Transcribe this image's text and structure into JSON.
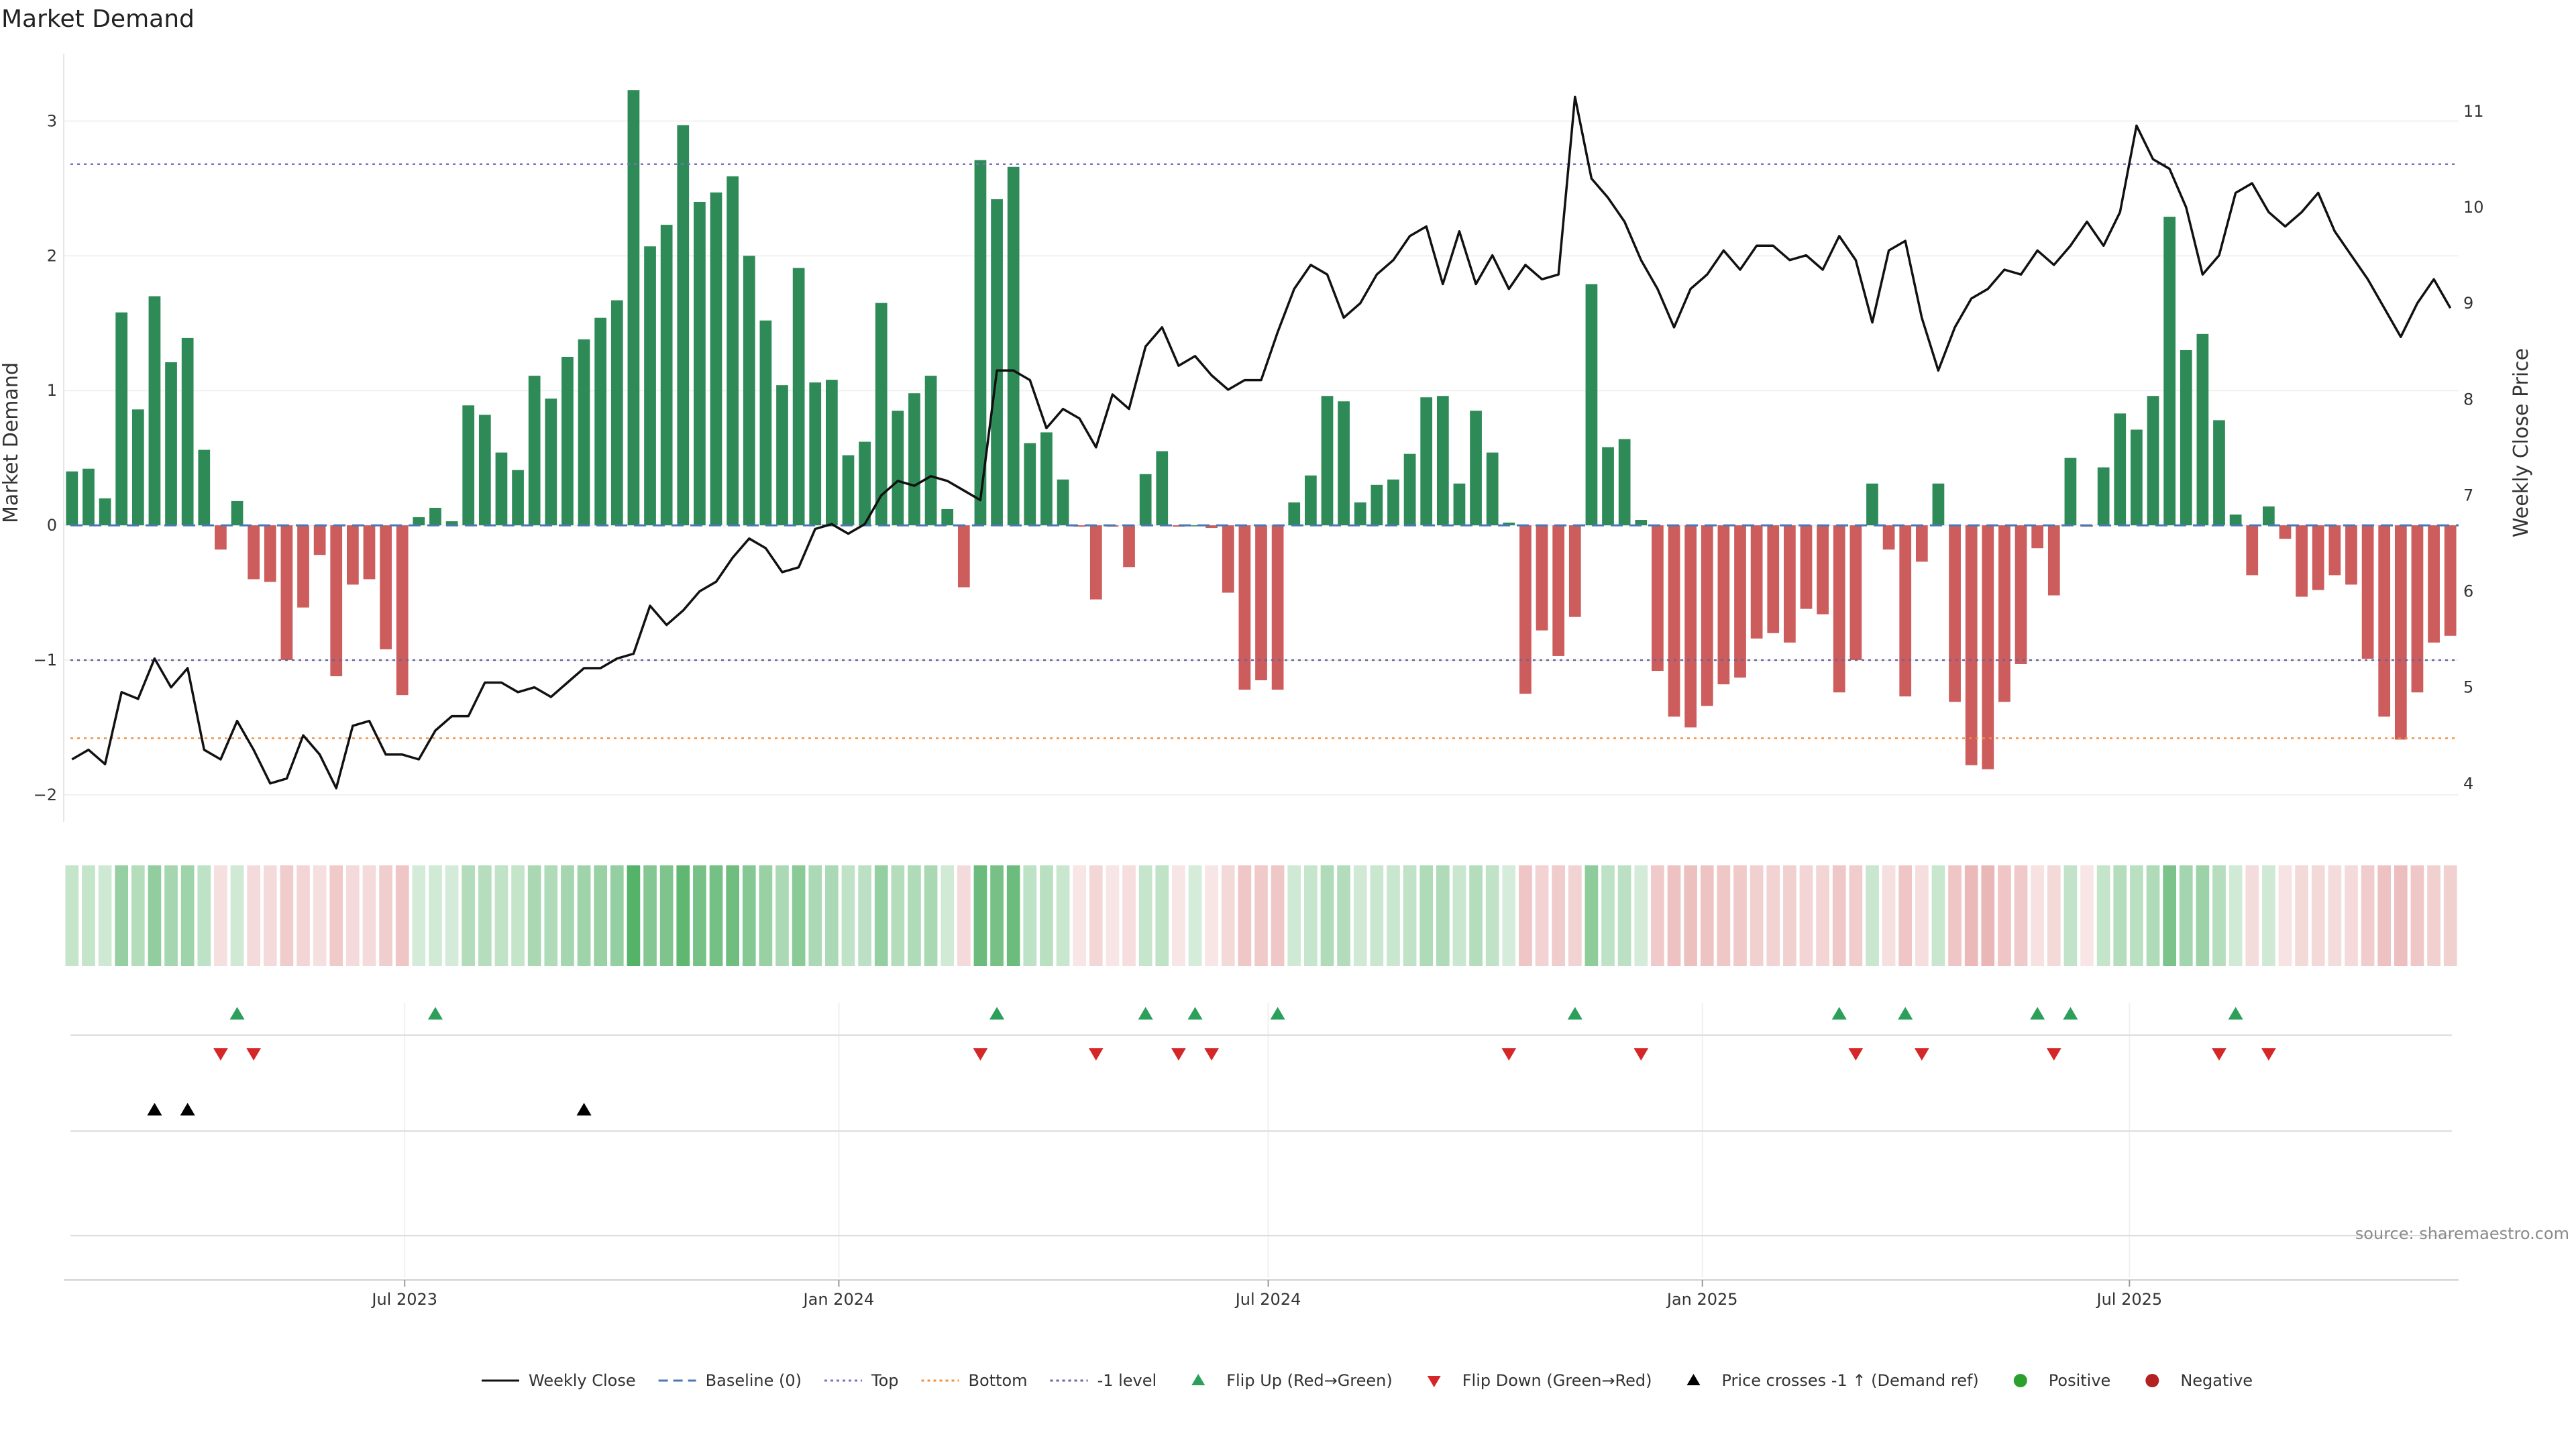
{
  "chart_data": {
    "type": "bar",
    "title": "Market Demand",
    "ylabel": "Market Demand",
    "y2label": "Weekly Close Price",
    "ylim": [
      -2.2,
      3.5
    ],
    "y2lim": [
      3.6,
      11.6
    ],
    "yticks": [
      -2,
      -1,
      0,
      1,
      2,
      3
    ],
    "y2ticks": [
      4,
      5,
      6,
      7,
      8,
      9,
      10,
      11
    ],
    "top_level": 2.68,
    "bottom_level": -1.58,
    "minus1_level": -1,
    "xticks": [
      {
        "label": "Jul 2023",
        "x": "2023-07-01"
      },
      {
        "label": "Jan 2024",
        "x": "2024-01-01"
      },
      {
        "label": "Jul 2024",
        "x": "2024-07-01"
      },
      {
        "label": "Jan 2025",
        "x": "2025-01-01"
      },
      {
        "label": "Jul 2025",
        "x": "2025-07-01"
      }
    ],
    "start_week": "2023-02-10",
    "series": [
      {
        "name": "Market Demand",
        "values": [
          0.4,
          0.42,
          0.2,
          1.58,
          0.86,
          1.7,
          1.21,
          1.39,
          0.56,
          -0.18,
          0.18,
          -0.4,
          -0.42,
          -1.0,
          -0.61,
          -0.22,
          -1.12,
          -0.44,
          -0.4,
          -0.92,
          -1.26,
          0.06,
          0.13,
          0.03,
          0.89,
          0.82,
          0.54,
          0.41,
          1.11,
          0.94,
          1.25,
          1.38,
          1.54,
          1.67,
          3.23,
          2.07,
          2.23,
          2.97,
          2.4,
          2.47,
          2.59,
          2.0,
          1.52,
          1.04,
          1.91,
          1.06,
          1.08,
          0.52,
          0.62,
          1.65,
          0.85,
          0.98,
          1.11,
          0.12,
          -0.46,
          2.71,
          2.42,
          2.66,
          0.61,
          0.69,
          0.34,
          -0.01,
          -0.55,
          -0.01,
          -0.31,
          0.38,
          0.55,
          -0.01,
          0.0,
          -0.02,
          -0.5,
          -1.22,
          -1.15,
          -1.22,
          0.17,
          0.37,
          0.96,
          0.92,
          0.17,
          0.3,
          0.34,
          0.53,
          0.95,
          0.96,
          0.31,
          0.85,
          0.54,
          0.02,
          -1.25,
          -0.78,
          -0.97,
          -0.68,
          1.79,
          0.58,
          0.64,
          0.04,
          -1.08,
          -1.42,
          -1.5,
          -1.34,
          -1.18,
          -1.13,
          -0.84,
          -0.8,
          -0.87,
          -0.62,
          -0.66,
          -1.24,
          -1.0,
          0.31,
          -0.18,
          -1.27,
          -0.27,
          0.31,
          -1.31,
          -1.78,
          -1.81,
          -1.31,
          -1.03,
          -0.17,
          -0.52,
          0.5,
          -0.01,
          0.43,
          0.83,
          0.71,
          0.96,
          2.29,
          1.3,
          1.42,
          0.78,
          0.08,
          -0.37,
          0.14,
          -0.1,
          -0.53,
          -0.48,
          -0.37,
          -0.44,
          -0.99,
          -1.42,
          -1.59,
          -1.24,
          -0.87,
          -0.82
        ]
      },
      {
        "name": "Weekly Close",
        "values": [
          4.25,
          4.35,
          4.2,
          4.95,
          4.88,
          5.3,
          5.0,
          5.2,
          4.35,
          4.25,
          4.65,
          4.35,
          4.0,
          4.05,
          4.5,
          4.3,
          3.95,
          4.6,
          4.65,
          4.3,
          4.3,
          4.25,
          4.55,
          4.7,
          4.7,
          5.05,
          5.05,
          4.95,
          5.0,
          4.9,
          5.05,
          5.2,
          5.2,
          5.3,
          5.35,
          5.85,
          5.65,
          5.8,
          6.0,
          6.1,
          6.35,
          6.55,
          6.45,
          6.2,
          6.25,
          6.65,
          6.7,
          6.6,
          6.7,
          7.0,
          7.15,
          7.1,
          7.2,
          7.15,
          7.05,
          6.95,
          8.3,
          8.3,
          8.2,
          7.7,
          7.9,
          7.8,
          7.5,
          8.05,
          7.9,
          8.55,
          8.75,
          8.35,
          8.45,
          8.25,
          8.1,
          8.2,
          8.2,
          8.7,
          9.15,
          9.4,
          9.3,
          8.85,
          9.0,
          9.3,
          9.45,
          9.7,
          9.8,
          9.2,
          9.75,
          9.2,
          9.5,
          9.15,
          9.4,
          9.25,
          9.3,
          11.15,
          10.3,
          10.1,
          9.85,
          9.45,
          9.15,
          8.75,
          9.15,
          9.3,
          9.55,
          9.35,
          9.6,
          9.6,
          9.45,
          9.5,
          9.35,
          9.7,
          9.45,
          8.8,
          9.55,
          9.65,
          8.85,
          8.3,
          8.75,
          9.05,
          9.15,
          9.35,
          9.3,
          9.55,
          9.4,
          9.6,
          9.85,
          9.6,
          9.95,
          10.85,
          10.5,
          10.4,
          10.0,
          9.3,
          9.5,
          10.15,
          10.25,
          9.95,
          9.8,
          9.95,
          10.15,
          9.75,
          9.5,
          9.25,
          8.95,
          8.65,
          9.0,
          9.25,
          8.95
        ]
      }
    ],
    "flip_up_weeks": [
      10,
      22,
      56,
      65,
      68,
      73,
      91,
      107,
      111,
      119,
      121,
      131
    ],
    "flip_down_weeks": [
      9,
      11,
      55,
      62,
      67,
      69,
      87,
      95,
      108,
      112,
      120,
      130,
      133
    ],
    "price_cross_weeks": [
      5,
      7,
      31
    ],
    "legend": [
      {
        "label": "Weekly Close",
        "kind": "solid",
        "color": "#111111"
      },
      {
        "label": "Baseline (0)",
        "kind": "dashed",
        "color": "#4a78b5"
      },
      {
        "label": "Top",
        "kind": "dotted",
        "color": "#7d6fbf"
      },
      {
        "label": "Bottom",
        "kind": "dotted",
        "color": "#f09040"
      },
      {
        "label": "-1 level",
        "kind": "dotted",
        "color": "#666699"
      },
      {
        "label": "Flip Up (Red→Green)",
        "kind": "tri-up",
        "color": "#2ca05a"
      },
      {
        "label": "Flip Down (Green→Red)",
        "kind": "tri-down",
        "color": "#d62728"
      },
      {
        "label": "Price crosses -1 ↑ (Demand ref)",
        "kind": "tri-up",
        "color": "#000000"
      },
      {
        "label": "Positive",
        "kind": "dot",
        "color": "#2ca02c"
      },
      {
        "label": "Negative",
        "kind": "dot",
        "color": "#b22222"
      }
    ]
  },
  "colors": {
    "positive_bar": "#2e8b57",
    "negative_bar": "#cd5c5c",
    "flip_up": "#2ca05a",
    "flip_down": "#d62728",
    "price_line": "#111111"
  },
  "source": "source: sharemaestro.com"
}
